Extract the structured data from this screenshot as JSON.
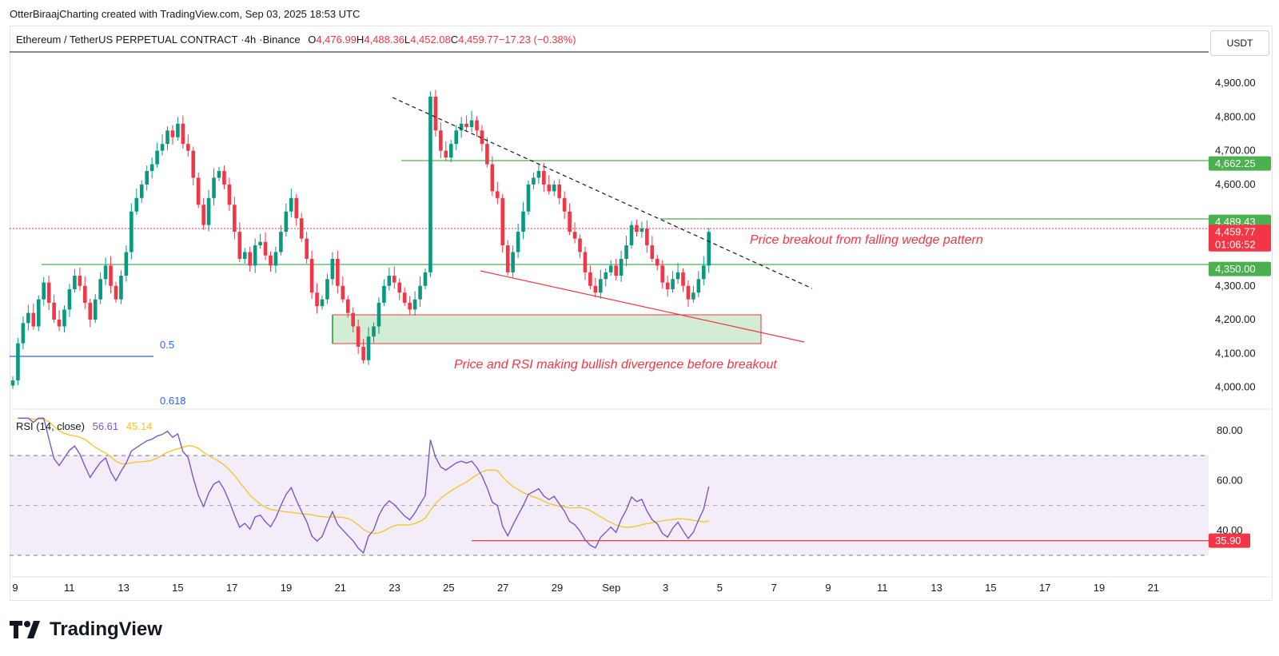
{
  "caption": "OtterBiraajCharting created with TradingView.com, Sep 03, 2025 18:53 UTC",
  "header": {
    "symbol": "Ethereum / TetherUS PERPETUAL CONTRACT",
    "interval": "4h",
    "exchange": "Binance",
    "open_label": "O",
    "open": "4,476.99",
    "high_label": "H",
    "high": "4,488.36",
    "low_label": "L",
    "low": "4,452.08",
    "close_label": "C",
    "close": "4,459.77",
    "change": "−17.23 (−0.38%)"
  },
  "currency_button": "USDT",
  "price_axis": {
    "ticks": [
      "4,900.00",
      "4,800.00",
      "4,700.00",
      "4,600.00",
      "4,300.00",
      "4,200.00",
      "4,100.00",
      "4,000.00"
    ],
    "tick_values": [
      4900,
      4800,
      4700,
      4600,
      4300,
      4200,
      4100,
      4000
    ],
    "range": [
      3940,
      4990
    ],
    "labels": [
      {
        "text": "4,662.25",
        "value": 4662.25,
        "color": "#4caf50"
      },
      {
        "text": "4,489.43",
        "value": 4489.43,
        "color": "#4caf50"
      },
      {
        "text": "4,459.77",
        "value": 4459.77,
        "color": "#f23645"
      },
      {
        "text": "01:06:52",
        "value": 4423,
        "color": "#f23645"
      },
      {
        "text": "4,350.00",
        "value": 4350,
        "color": "#4caf50"
      }
    ]
  },
  "fib_labels": [
    "0.5",
    "0.618"
  ],
  "annotations": {
    "breakout": "Price breakout from falling wedge pattern",
    "divergence": "Price and RSI making bullish divergence before breakout"
  },
  "rsi": {
    "legend_name": "RSI (14, close)",
    "rsi_value": "56.61",
    "ma_value": "45.14",
    "rsi_color": "#7e57c2",
    "ma_color": "#f7c325",
    "ticks": [
      "80.00",
      "60.00",
      "40.00"
    ],
    "tick_values": [
      80,
      60,
      40
    ],
    "range": [
      22,
      88
    ],
    "band_upper": 70,
    "band_mid": 50,
    "band_lower": 30,
    "support_label": "35.90",
    "support_value": 35.9
  },
  "time_axis": {
    "labels": [
      "9",
      "11",
      "13",
      "15",
      "17",
      "19",
      "21",
      "23",
      "25",
      "27",
      "29",
      "Sep",
      "3",
      "5",
      "7",
      "9",
      "11",
      "13",
      "15",
      "17",
      "19",
      "21"
    ]
  },
  "colors": {
    "up": "#089981",
    "down": "#f23645",
    "level_green": "#4caf50",
    "trend_red": "#f23645",
    "fib_blue": "#2962ff",
    "zone_fill": "#d3ecd5"
  },
  "chart_data": {
    "type": "candlestick",
    "title": "Ethereum / TetherUS PERPETUAL CONTRACT · 4h · Binance",
    "x_start": "Aug 9, 2025",
    "interval": "4h",
    "ohlc_close_series": [
      4020,
      4130,
      4190,
      4220,
      4180,
      4260,
      4310,
      4250,
      4200,
      4180,
      4230,
      4290,
      4330,
      4300,
      4250,
      4200,
      4260,
      4320,
      4360,
      4300,
      4260,
      4330,
      4400,
      4520,
      4560,
      4600,
      4640,
      4660,
      4700,
      4720,
      4760,
      4740,
      4780,
      4720,
      4700,
      4620,
      4540,
      4480,
      4560,
      4620,
      4640,
      4600,
      4540,
      4460,
      4380,
      4400,
      4360,
      4420,
      4430,
      4390,
      4360,
      4400,
      4460,
      4520,
      4560,
      4500,
      4440,
      4380,
      4280,
      4240,
      4260,
      4320,
      4380,
      4300,
      4260,
      4220,
      4180,
      4120,
      4080,
      4150,
      4180,
      4250,
      4300,
      4330,
      4310,
      4280,
      4250,
      4230,
      4260,
      4300,
      4340,
      4860,
      4760,
      4700,
      4680,
      4720,
      4760,
      4780,
      4770,
      4790,
      4760,
      4720,
      4660,
      4580,
      4560,
      4420,
      4340,
      4400,
      4460,
      4520,
      4600,
      4620,
      4640,
      4600,
      4580,
      4600,
      4560,
      4520,
      4460,
      4440,
      4400,
      4340,
      4300,
      4280,
      4320,
      4340,
      4360,
      4330,
      4380,
      4420,
      4480,
      4460,
      4470,
      4420,
      4380,
      4360,
      4310,
      4290,
      4320,
      4340,
      4300,
      4260,
      4280,
      4320,
      4360,
      4459.77
    ]
  }
}
